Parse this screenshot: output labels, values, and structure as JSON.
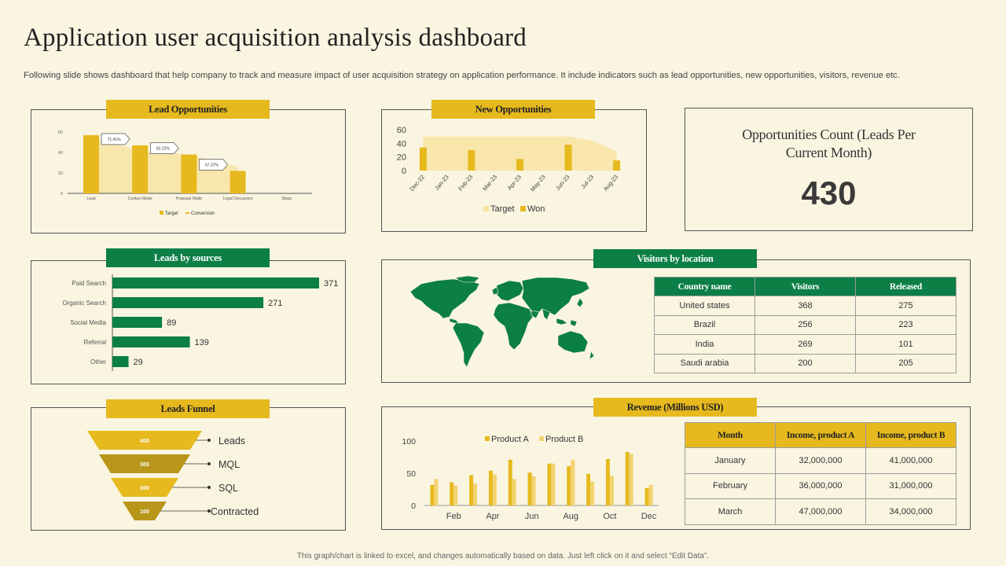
{
  "title": "Application user acquisition analysis dashboard",
  "subtitle": "Following slide shows dashboard that help company to track and measure impact of user acquisition strategy on application performance. It include indicators such as lead opportunities, new opportunities, visitors, revenue etc.",
  "footer": "This graph/chart is linked to excel, and changes automatically based on data. Just left click on it and select “Edit Data”.",
  "colors": {
    "gold": "#e6b91e",
    "gold_light": "#f7e3a0",
    "gold_dark": "#b8961a",
    "green": "#0b7f46",
    "bg": "#faf5e1"
  },
  "panels": {
    "lead_opportunities": "Lead Opportunities",
    "new_opportunities": "New Opportunities",
    "opportunities_count": {
      "title_line1": "Opportunities Count (Leads Per",
      "title_line2": "Current Month)",
      "value": "430"
    },
    "leads_by_sources": "Leads by sources",
    "visitors_by_location": "Visitors by location",
    "leads_funnel": "Leads Funnel",
    "revenue": "Revenue (Millions USD)"
  },
  "visitors_table": {
    "headers": [
      "Country name",
      "Visitors",
      "Released"
    ],
    "rows": [
      [
        "United states",
        "368",
        "275"
      ],
      [
        "Brazil",
        "256",
        "223"
      ],
      [
        "India",
        "269",
        "101"
      ],
      [
        "Saudi arabia",
        "200",
        "205"
      ]
    ]
  },
  "revenue_table": {
    "headers": [
      "Month",
      "Income, product A",
      "Income, product B"
    ],
    "rows": [
      [
        "January",
        "32,000,000",
        "41,000,000"
      ],
      [
        "February",
        "36,000,000",
        "31,000,000"
      ],
      [
        "March",
        "47,000,000",
        "34,000,000"
      ]
    ]
  },
  "chart_data": [
    {
      "id": "lead_opportunities",
      "type": "bar",
      "title": "Lead Opportunities",
      "categories": [
        "Lead",
        "Contact Made",
        "Proposal Made",
        "Legal Discussion",
        "Steps"
      ],
      "series": [
        {
          "name": "Target",
          "values": [
            57,
            47,
            38,
            22,
            0
          ]
        }
      ],
      "area_values": [
        54,
        42,
        38,
        26
      ],
      "conversion_labels": [
        "71.41%",
        "82.22%",
        "67.37%"
      ],
      "ylim": [
        0,
        60
      ],
      "yticks": [
        0,
        20,
        40,
        60
      ],
      "legend": [
        "Target",
        "Conversion"
      ]
    },
    {
      "id": "new_opportunities",
      "type": "bar",
      "title": "New Opportunities",
      "categories": [
        "Dec-22",
        "Jan-23",
        "Feb-23",
        "Mar-23",
        "Apr-23",
        "May-23",
        "Jun-23",
        "Jul-23",
        "Aug-23"
      ],
      "series": [
        {
          "name": "Target",
          "values": [
            50,
            50,
            50,
            50,
            50,
            50,
            50,
            44,
            28
          ]
        },
        {
          "name": "Won",
          "values": [
            34,
            null,
            30,
            null,
            17,
            null,
            38,
            null,
            15
          ]
        }
      ],
      "ylim": [
        0,
        60
      ],
      "yticks": [
        0,
        20,
        40,
        60
      ],
      "legend": [
        "Target",
        "Won"
      ]
    },
    {
      "id": "leads_by_sources",
      "type": "bar",
      "orientation": "horizontal",
      "title": "Leads by sources",
      "categories": [
        "Paid Search",
        "Organic Search",
        "Social Media",
        "Referral",
        "Other"
      ],
      "values": [
        371,
        271,
        89,
        139,
        29
      ]
    },
    {
      "id": "leads_funnel",
      "type": "bar",
      "orientation": "funnel",
      "title": "Leads Funnel",
      "categories": [
        "Leads",
        "MQL",
        "SQL",
        "Contracted"
      ],
      "values": [
        400,
        300,
        200,
        100
      ]
    },
    {
      "id": "revenue",
      "type": "bar",
      "title": "Revenue (Millions USD)",
      "categories": [
        "Jan",
        "Feb",
        "Mar",
        "Apr",
        "May",
        "Jun",
        "Jul",
        "Aug",
        "Sep",
        "Oct",
        "Nov",
        "Dec"
      ],
      "tick_labels": [
        "Feb",
        "Apr",
        "Jun",
        "Aug",
        "Oct",
        "Dec"
      ],
      "series": [
        {
          "name": "Product A",
          "values": [
            32,
            36,
            47,
            54,
            71,
            51,
            65,
            61,
            49,
            72,
            83,
            27
          ]
        },
        {
          "name": "Product B",
          "values": [
            41,
            31,
            34,
            48,
            41,
            45,
            65,
            71,
            37,
            46,
            80,
            32
          ]
        }
      ],
      "ylim": [
        0,
        100
      ],
      "yticks": [
        0,
        50,
        100
      ],
      "legend": [
        "Product A",
        "Product B"
      ]
    }
  ]
}
